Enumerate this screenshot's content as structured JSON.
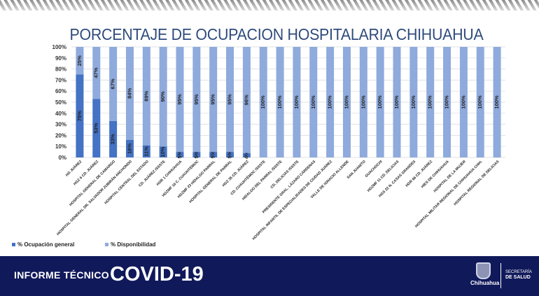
{
  "chart_data": {
    "type": "bar",
    "stacked": true,
    "title": "PORCENTAJE DE OCUPACION HOSPITALARIA CHIHUAHUA",
    "categories": [
      "HG JUÁREZ",
      "HGZ 6 CD. JUÁREZ",
      "HOSPITAL GENERAL DE CAMARGO",
      "HOSPITAL GENERAL DR. SALVADOR ZUBIRÁN ANCHONDO",
      "HOSPITAL CENTRAL DEL ESTADO",
      "CD. JUÁREZ ISSSTE",
      "HGR 1 CHIHUAHUA",
      "HGZMF 16 C. CUAUHTÉMOC",
      "HGZMF 23 HIDALGO PARRAL",
      "HOSPITAL GENERAL DE PARRAL",
      "HGZ 35 CD. JUÁREZ",
      "CD. CUAUHTÉMOC ISSSTE",
      "HIDALGO DEL PARRAL ISSSTE",
      "CD. DELICIAS ISSSTE",
      "PRESIDENTE GRAL. LÁZARO CÁRDENAS",
      "HOSPITAL INFANTIL DE ESPECIALIDADES DE CIUDAD JUÁREZ",
      "VALLE DE IGNACIO ALLENDE",
      "SAN JUANITO",
      "GUACHOCHI",
      "HGZMF 11 CD. DELICIAS",
      "HGS 22 N. CASAS GRANDES",
      "HGR 66 CD. JUÁREZ",
      "HIES DE CHIHUAHUA",
      "HOSPITAL DE LA MUJER",
      "HOSPITAL MILITAR REGIONAL DE CHIHUAHUA CHIH.",
      "HOSPITAL REGIONAL DE DELICIAS"
    ],
    "series": [
      {
        "name": "% Ocupación general",
        "color": "#4472c4",
        "values": [
          75,
          53,
          33,
          16,
          11,
          10,
          5,
          5,
          5,
          5,
          4,
          0,
          0,
          0,
          0,
          0,
          0,
          0,
          0,
          0,
          0,
          0,
          0,
          0,
          0,
          0
        ]
      },
      {
        "name": "% Disponibilidad",
        "color": "#8faadc",
        "values": [
          25,
          47,
          67,
          84,
          89,
          90,
          95,
          95,
          95,
          95,
          96,
          100,
          100,
          100,
          100,
          100,
          100,
          100,
          100,
          100,
          100,
          100,
          100,
          100,
          100,
          100
        ]
      }
    ],
    "yticks": [
      "0%",
      "10%",
      "20%",
      "30%",
      "40%",
      "50%",
      "60%",
      "70%",
      "80%",
      "90%",
      "100%"
    ],
    "ylim": [
      0,
      100
    ],
    "grid": true,
    "legend": "bottom-left"
  },
  "footer": {
    "label": "INFORME TÉCNICO",
    "title": "COVID-19",
    "logo_text": "Chihuahua",
    "dept_line1": "SECRETARÍA",
    "dept_line2": "DE SALUD",
    "color": "#10195a"
  }
}
